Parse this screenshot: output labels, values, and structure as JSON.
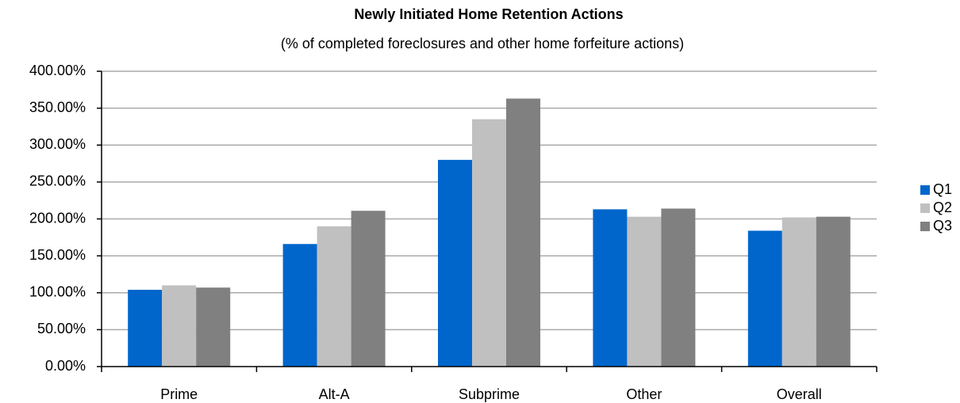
{
  "chart_data": {
    "type": "bar",
    "title": "Newly Initiated Home Retention Actions",
    "subtitle": "(% of completed foreclosures and other home forfeiture actions)",
    "categories": [
      "Prime",
      "Alt-A",
      "Subprime",
      "Other",
      "Overall"
    ],
    "series": [
      {
        "name": "Q1",
        "color": "#0066cc",
        "values": [
          104,
          166,
          280,
          213,
          184
        ]
      },
      {
        "name": "Q2",
        "color": "#c0c0c0",
        "values": [
          110,
          190,
          335,
          203,
          202
        ]
      },
      {
        "name": "Q3",
        "color": "#808080",
        "values": [
          107,
          211,
          363,
          214,
          203
        ]
      }
    ],
    "ylim": [
      0,
      400
    ],
    "yticks": [
      {
        "value": 0,
        "label": "0.00%"
      },
      {
        "value": 50,
        "label": "50.00%"
      },
      {
        "value": 100,
        "label": "100.00%"
      },
      {
        "value": 150,
        "label": "150.00%"
      },
      {
        "value": 200,
        "label": "200.00%"
      },
      {
        "value": 250,
        "label": "250.00%"
      },
      {
        "value": 300,
        "label": "300.00%"
      },
      {
        "value": 350,
        "label": "350.00%"
      },
      {
        "value": 400,
        "label": "400.00%"
      }
    ],
    "grid": true,
    "legend": "right"
  }
}
